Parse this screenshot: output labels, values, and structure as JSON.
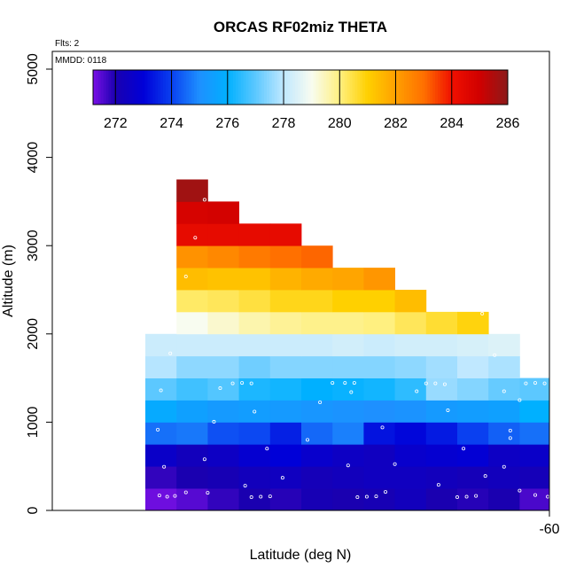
{
  "chart_data": {
    "type": "heatmap",
    "title": "ORCAS RF02miz THETA",
    "annotations": {
      "flights": "Flts: 2",
      "date": "MMDD: 0118"
    },
    "xlabel": "Latitude (deg N)",
    "ylabel": "Altitude (m)",
    "x_tick_labels": [
      "-60"
    ],
    "y_ticks": [
      0,
      1000,
      2000,
      3000,
      4000,
      5000
    ],
    "ylim": [
      0,
      5000
    ],
    "x_columns": 13,
    "bin_height_m": 250,
    "colorbar": {
      "min": 271.2,
      "max": 286,
      "ticks": [
        272,
        274,
        276,
        278,
        280,
        282,
        284,
        286
      ],
      "stops": [
        {
          "v": 271.2,
          "c": "#7a10e6"
        },
        {
          "v": 272.0,
          "c": "#1a00b0"
        },
        {
          "v": 273.0,
          "c": "#0000d8"
        },
        {
          "v": 274.0,
          "c": "#0a40f0"
        },
        {
          "v": 275.0,
          "c": "#1e90ff"
        },
        {
          "v": 276.0,
          "c": "#00b0ff"
        },
        {
          "v": 277.0,
          "c": "#5cc8ff"
        },
        {
          "v": 278.0,
          "c": "#c0e8ff"
        },
        {
          "v": 279.0,
          "c": "#f8fcf0"
        },
        {
          "v": 280.0,
          "c": "#fff080"
        },
        {
          "v": 281.0,
          "c": "#ffd000"
        },
        {
          "v": 282.0,
          "c": "#ffa000"
        },
        {
          "v": 283.0,
          "c": "#ff7000"
        },
        {
          "v": 284.0,
          "c": "#f01000"
        },
        {
          "v": 285.0,
          "c": "#d00000"
        },
        {
          "v": 286.0,
          "c": "#8b1a1a"
        }
      ]
    },
    "cells": [
      {
        "row": 0,
        "values": [
          271.3,
          271.5,
          271.8,
          272.0,
          271.9,
          272.1,
          272.0,
          272.1,
          272.3,
          272.0,
          271.9,
          272.0,
          271.6
        ]
      },
      {
        "row": 1,
        "values": [
          271.8,
          272.0,
          272.1,
          272.3,
          272.4,
          272.2,
          272.3,
          272.4,
          272.4,
          272.3,
          272.2,
          272.3,
          272.2
        ]
      },
      {
        "row": 2,
        "values": [
          272.6,
          272.3,
          272.5,
          272.8,
          273.0,
          272.7,
          272.5,
          272.4,
          272.7,
          272.8,
          272.9,
          272.5,
          272.6
        ]
      },
      {
        "row": 3,
        "values": [
          274.6,
          274.7,
          274.2,
          274.1,
          273.5,
          274.5,
          274.8,
          273.3,
          273.1,
          273.4,
          274.0,
          274.4,
          274.6
        ]
      },
      {
        "row": 4,
        "values": [
          275.8,
          275.5,
          275.3,
          275.4,
          275.3,
          275.2,
          275.1,
          275.0,
          275.1,
          275.3,
          275.4,
          275.5,
          276.0
        ]
      },
      {
        "row": 5,
        "values": [
          277.0,
          276.7,
          276.9,
          276.3,
          276.2,
          276.0,
          276.1,
          276.2,
          276.5,
          277.6,
          277.4,
          277.1,
          277.0
        ]
      },
      {
        "row": 6,
        "values": [
          277.9,
          277.5,
          277.5,
          277.2,
          277.4,
          277.4,
          277.4,
          277.4,
          277.5,
          277.7,
          278.0,
          277.8,
          null
        ]
      },
      {
        "row": 7,
        "values": [
          278.2,
          278.2,
          278.2,
          278.2,
          278.2,
          278.2,
          278.3,
          278.2,
          278.3,
          278.3,
          278.4,
          278.5,
          null
        ]
      },
      {
        "row": 8,
        "values": [
          null,
          279.0,
          279.3,
          279.6,
          279.8,
          279.9,
          279.9,
          280.0,
          280.3,
          280.6,
          280.9,
          null,
          null
        ]
      },
      {
        "row": 9,
        "values": [
          null,
          280.2,
          280.3,
          280.5,
          280.8,
          280.8,
          281.0,
          281.0,
          281.4,
          null,
          null,
          null,
          null
        ]
      },
      {
        "row": 10,
        "values": [
          null,
          281.4,
          281.3,
          281.3,
          281.6,
          281.8,
          281.9,
          282.2,
          null,
          null,
          null,
          null,
          null
        ]
      },
      {
        "row": 11,
        "values": [
          null,
          282.3,
          282.5,
          282.8,
          283.0,
          283.1,
          null,
          null,
          null,
          null,
          null,
          null,
          null
        ]
      },
      {
        "row": 12,
        "values": [
          null,
          284.3,
          284.3,
          284.3,
          284.3,
          null,
          null,
          null,
          null,
          null,
          null,
          null,
          null
        ]
      },
      {
        "row": 13,
        "values": [
          null,
          284.8,
          284.9,
          null,
          null,
          null,
          null,
          null,
          null,
          null,
          null,
          null,
          null
        ]
      },
      {
        "row": 14,
        "values": [
          null,
          285.7,
          null,
          null,
          null,
          null,
          null,
          null,
          null,
          null,
          null,
          null,
          null
        ]
      }
    ],
    "flight_track_points": [
      {
        "col": 0.45,
        "alt": 170
      },
      {
        "col": 0.7,
        "alt": 155
      },
      {
        "col": 0.95,
        "alt": 165
      },
      {
        "col": 1.3,
        "alt": 205
      },
      {
        "col": 2.0,
        "alt": 200
      },
      {
        "col": 3.4,
        "alt": 150
      },
      {
        "col": 3.7,
        "alt": 155
      },
      {
        "col": 4.0,
        "alt": 160
      },
      {
        "col": 3.2,
        "alt": 280
      },
      {
        "col": 4.4,
        "alt": 370
      },
      {
        "col": 6.8,
        "alt": 150
      },
      {
        "col": 7.1,
        "alt": 155
      },
      {
        "col": 7.4,
        "alt": 160
      },
      {
        "col": 7.7,
        "alt": 210
      },
      {
        "col": 9.4,
        "alt": 290
      },
      {
        "col": 10.0,
        "alt": 150
      },
      {
        "col": 10.3,
        "alt": 155
      },
      {
        "col": 10.6,
        "alt": 165
      },
      {
        "col": 10.9,
        "alt": 390
      },
      {
        "col": 12.0,
        "alt": 225
      },
      {
        "col": 12.5,
        "alt": 175
      },
      {
        "col": 12.9,
        "alt": 155
      },
      {
        "col": 0.6,
        "alt": 495
      },
      {
        "col": 1.9,
        "alt": 580
      },
      {
        "col": 6.5,
        "alt": 510
      },
      {
        "col": 8.0,
        "alt": 525
      },
      {
        "col": 11.5,
        "alt": 495
      },
      {
        "col": 10.2,
        "alt": 700
      },
      {
        "col": 3.9,
        "alt": 700
      },
      {
        "col": 0.4,
        "alt": 915
      },
      {
        "col": 2.2,
        "alt": 1005
      },
      {
        "col": 5.2,
        "alt": 800
      },
      {
        "col": 7.6,
        "alt": 940
      },
      {
        "col": 11.7,
        "alt": 905
      },
      {
        "col": 11.7,
        "alt": 820
      },
      {
        "col": 3.5,
        "alt": 1120
      },
      {
        "col": 5.6,
        "alt": 1225
      },
      {
        "col": 9.7,
        "alt": 1135
      },
      {
        "col": 12.0,
        "alt": 1250
      },
      {
        "col": 0.5,
        "alt": 1360
      },
      {
        "col": 2.4,
        "alt": 1385
      },
      {
        "col": 2.8,
        "alt": 1440
      },
      {
        "col": 3.1,
        "alt": 1445
      },
      {
        "col": 3.4,
        "alt": 1440
      },
      {
        "col": 6.0,
        "alt": 1445
      },
      {
        "col": 6.4,
        "alt": 1445
      },
      {
        "col": 6.7,
        "alt": 1445
      },
      {
        "col": 6.6,
        "alt": 1340
      },
      {
        "col": 8.7,
        "alt": 1350
      },
      {
        "col": 9.0,
        "alt": 1440
      },
      {
        "col": 9.3,
        "alt": 1440
      },
      {
        "col": 9.6,
        "alt": 1430
      },
      {
        "col": 11.5,
        "alt": 1350
      },
      {
        "col": 12.2,
        "alt": 1440
      },
      {
        "col": 12.5,
        "alt": 1445
      },
      {
        "col": 12.8,
        "alt": 1440
      },
      {
        "col": 0.8,
        "alt": 1780
      },
      {
        "col": 11.2,
        "alt": 1760
      },
      {
        "col": 1.3,
        "alt": 2650
      },
      {
        "col": 1.6,
        "alt": 3090
      },
      {
        "col": 1.9,
        "alt": 3520
      },
      {
        "col": 10.8,
        "alt": 2230
      }
    ]
  }
}
